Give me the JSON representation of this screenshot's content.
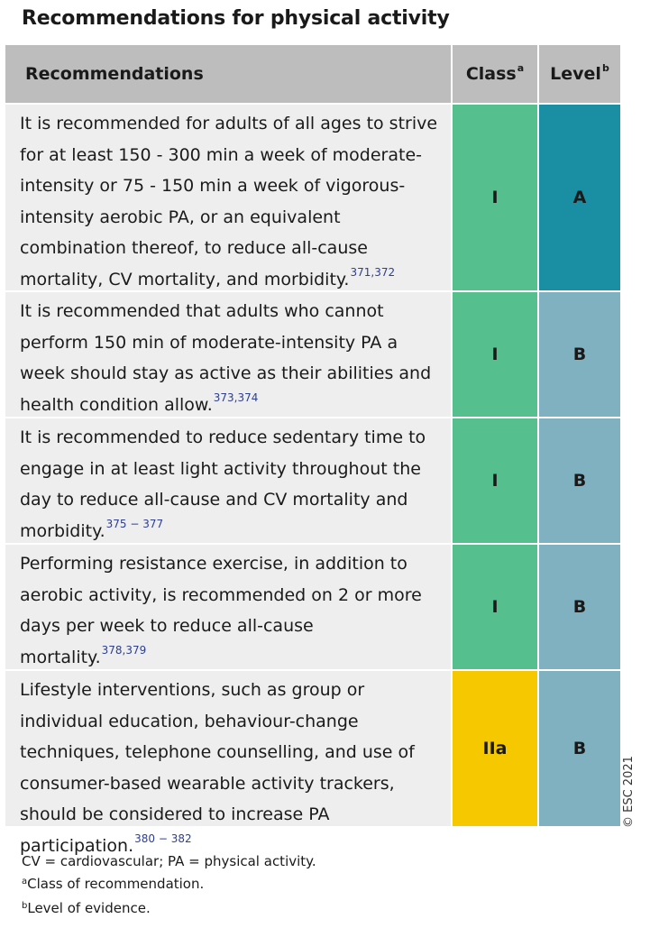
{
  "title": "Recommendations for physical activity",
  "header": {
    "recommendations": "Recommendations",
    "class_label": "Class",
    "class_sup": "a",
    "level_label": "Level",
    "level_sup": "b"
  },
  "rows": [
    {
      "text": "It is recommended for adults of all ages to strive for at least 150 - 300 min a week of moderate-intensity or 75 - 150 min a week of vigorous-intensity aerobic PA, or an equivalent combination thereof, to reduce all-cause mortality, CV mortality, and morbidity.",
      "refs": "371,372",
      "class": "I",
      "level": "A",
      "class_color": "#55bf8d",
      "level_color": "#1a8fa3"
    },
    {
      "text": "It is recommended that adults who cannot perform 150 min of moderate-intensity PA a week should stay as active as their abilities and health condition allow.",
      "refs": "373,374",
      "class": "I",
      "level": "B",
      "class_color": "#55bf8d",
      "level_color": "#80b1c1"
    },
    {
      "text": "It is recommended to reduce sedentary time to engage in at least light activity throughout the day to reduce all-cause and CV mortality and morbidity.",
      "refs": "375 − 377",
      "class": "I",
      "level": "B",
      "class_color": "#55bf8d",
      "level_color": "#80b1c1"
    },
    {
      "text": "Performing resistance exercise, in addition to aerobic activity, is recommended on 2 or more days per week to reduce all-cause mortality.",
      "refs": "378,379",
      "class": "I",
      "level": "B",
      "class_color": "#55bf8d",
      "level_color": "#80b1c1"
    },
    {
      "text": "Lifestyle interventions, such as group or individual education, behaviour-change techniques, telephone counselling, and use of consumer-based wearable activity trackers, should be considered to increase PA participation.",
      "refs": "380 − 382",
      "class": "IIa",
      "level": "B",
      "class_color": "#f6c800",
      "level_color": "#80b1c1"
    }
  ],
  "copyright": "© ESC 2021",
  "footnotes": {
    "abbrev": "CV = cardiovascular; PA = physical activity.",
    "a_mark": "a",
    "a_text": "Class of recommendation.",
    "b_mark": "b",
    "b_text": "Level of evidence."
  }
}
